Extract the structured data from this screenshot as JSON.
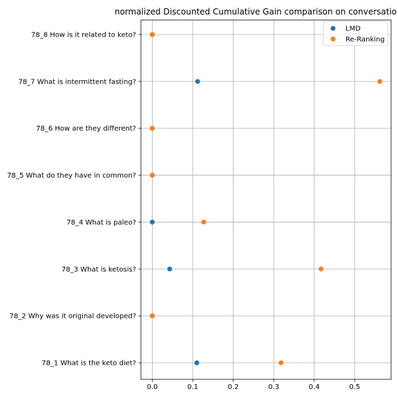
{
  "chart_data": {
    "type": "scatter",
    "title": "normalized Discounted Cumulative Gain comparison on conversatio",
    "xlabel": "",
    "ylabel": "",
    "xlim": [
      -0.028,
      0.59
    ],
    "x_ticks": [
      "0.0",
      "0.1",
      "0.2",
      "0.3",
      "0.4",
      "0.5"
    ],
    "grid": true,
    "legend_position": "top-right",
    "categories": [
      "78_1 What is the keto diet?",
      "78_2 Why was it original developed?",
      "78_3 What is ketosis?",
      "78_4 What is paleo?",
      "78_5 What do they have in common?",
      "78_6 How are they different?",
      "78_7 What is intermittent fasting?",
      "78_8 How is it related to keto?"
    ],
    "series": [
      {
        "name": "LMD",
        "color": "#1f77b4",
        "values": [
          0.11,
          0.0,
          0.043,
          0.0,
          0.0,
          0.0,
          0.112,
          0.0
        ]
      },
      {
        "name": "Re-Ranking",
        "color": "#ff7f0e",
        "values": [
          0.318,
          0.0,
          0.417,
          0.127,
          0.0,
          0.0,
          0.562,
          0.0
        ]
      }
    ]
  }
}
